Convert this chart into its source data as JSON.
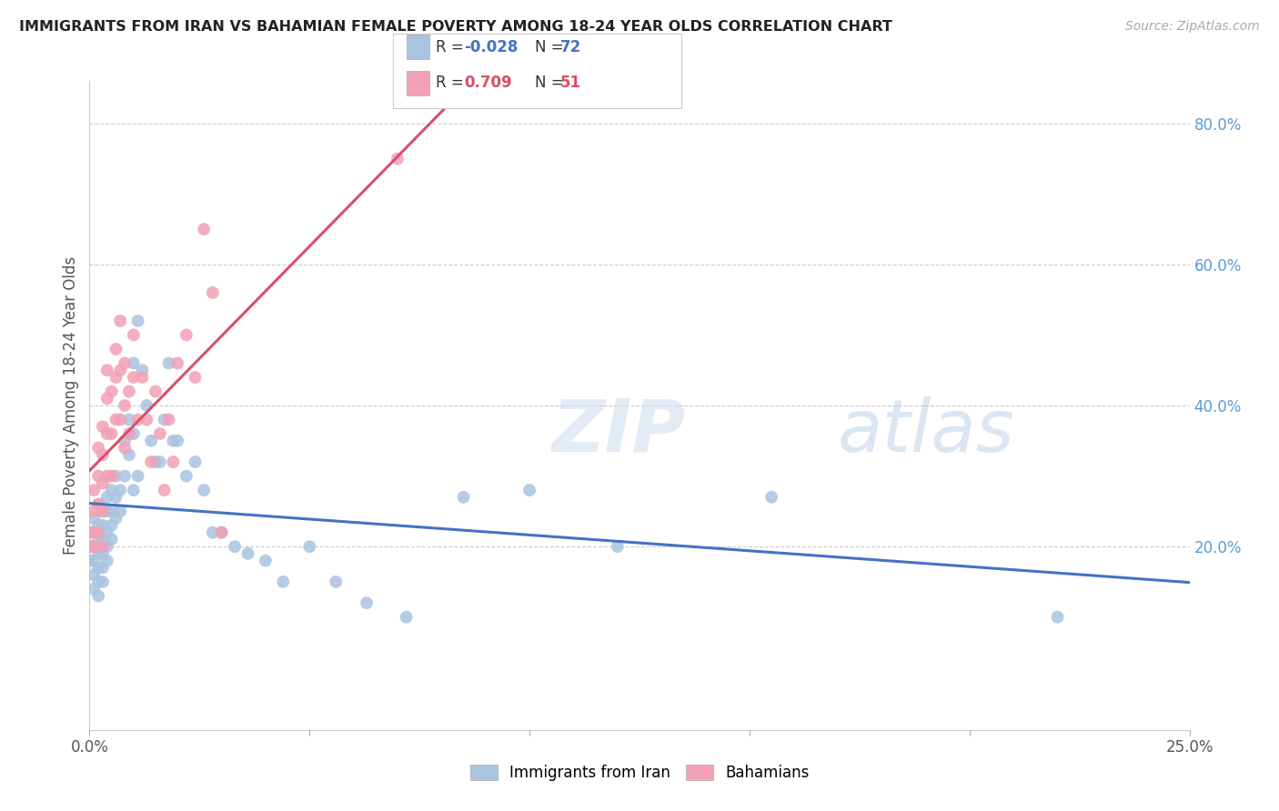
{
  "title": "IMMIGRANTS FROM IRAN VS BAHAMIAN FEMALE POVERTY AMONG 18-24 YEAR OLDS CORRELATION CHART",
  "source": "Source: ZipAtlas.com",
  "ylabel": "Female Poverty Among 18-24 Year Olds",
  "watermark_zip": "ZIP",
  "watermark_atlas": "atlas",
  "color_iran": "#aac4e0",
  "color_bahamian": "#f2a0b5",
  "color_iran_line": "#4472c4",
  "color_bahamian_line": "#d94f6a",
  "color_right_axis": "#5b9bd5",
  "xlim": [
    0.0,
    0.25
  ],
  "ylim": [
    -0.06,
    0.86
  ],
  "right_yticks": [
    0.2,
    0.4,
    0.6,
    0.8
  ],
  "right_yticklabels": [
    "20.0%",
    "40.0%",
    "60.0%",
    "80.0%"
  ],
  "iran_x": [
    0.0,
    0.0,
    0.0,
    0.001,
    0.001,
    0.001,
    0.001,
    0.001,
    0.001,
    0.002,
    0.002,
    0.002,
    0.002,
    0.002,
    0.002,
    0.002,
    0.003,
    0.003,
    0.003,
    0.003,
    0.003,
    0.003,
    0.004,
    0.004,
    0.004,
    0.004,
    0.004,
    0.005,
    0.005,
    0.005,
    0.005,
    0.006,
    0.006,
    0.006,
    0.007,
    0.007,
    0.008,
    0.008,
    0.009,
    0.009,
    0.01,
    0.01,
    0.01,
    0.011,
    0.011,
    0.012,
    0.013,
    0.014,
    0.015,
    0.016,
    0.017,
    0.018,
    0.019,
    0.02,
    0.022,
    0.024,
    0.026,
    0.028,
    0.03,
    0.033,
    0.036,
    0.04,
    0.044,
    0.05,
    0.056,
    0.063,
    0.072,
    0.085,
    0.1,
    0.12,
    0.155,
    0.22
  ],
  "iran_y": [
    0.22,
    0.2,
    0.18,
    0.24,
    0.22,
    0.2,
    0.18,
    0.16,
    0.14,
    0.26,
    0.23,
    0.21,
    0.19,
    0.17,
    0.15,
    0.13,
    0.25,
    0.23,
    0.21,
    0.19,
    0.17,
    0.15,
    0.27,
    0.25,
    0.22,
    0.2,
    0.18,
    0.28,
    0.25,
    0.23,
    0.21,
    0.3,
    0.27,
    0.24,
    0.28,
    0.25,
    0.35,
    0.3,
    0.38,
    0.33,
    0.46,
    0.36,
    0.28,
    0.52,
    0.3,
    0.45,
    0.4,
    0.35,
    0.32,
    0.32,
    0.38,
    0.46,
    0.35,
    0.35,
    0.3,
    0.32,
    0.28,
    0.22,
    0.22,
    0.2,
    0.19,
    0.18,
    0.15,
    0.2,
    0.15,
    0.12,
    0.1,
    0.27,
    0.28,
    0.2,
    0.27,
    0.1
  ],
  "bahamian_x": [
    0.0,
    0.0,
    0.001,
    0.001,
    0.001,
    0.001,
    0.002,
    0.002,
    0.002,
    0.002,
    0.003,
    0.003,
    0.003,
    0.003,
    0.003,
    0.004,
    0.004,
    0.004,
    0.004,
    0.005,
    0.005,
    0.005,
    0.006,
    0.006,
    0.006,
    0.007,
    0.007,
    0.007,
    0.008,
    0.008,
    0.008,
    0.009,
    0.009,
    0.01,
    0.01,
    0.011,
    0.012,
    0.013,
    0.014,
    0.015,
    0.016,
    0.017,
    0.018,
    0.019,
    0.02,
    0.022,
    0.024,
    0.026,
    0.028,
    0.03,
    0.07
  ],
  "bahamian_y": [
    0.22,
    0.2,
    0.28,
    0.25,
    0.22,
    0.2,
    0.34,
    0.3,
    0.26,
    0.22,
    0.37,
    0.33,
    0.29,
    0.25,
    0.2,
    0.45,
    0.41,
    0.36,
    0.3,
    0.42,
    0.36,
    0.3,
    0.48,
    0.44,
    0.38,
    0.52,
    0.45,
    0.38,
    0.46,
    0.4,
    0.34,
    0.42,
    0.36,
    0.5,
    0.44,
    0.38,
    0.44,
    0.38,
    0.32,
    0.42,
    0.36,
    0.28,
    0.38,
    0.32,
    0.46,
    0.5,
    0.44,
    0.65,
    0.56,
    0.22,
    0.75
  ]
}
